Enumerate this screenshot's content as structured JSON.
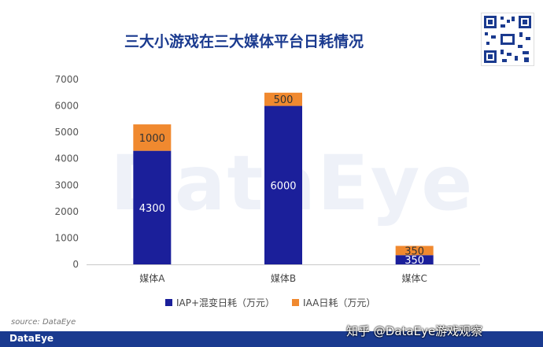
{
  "chart_data": {
    "type": "bar",
    "stacked": true,
    "title": "三大小游戏在三大媒体平台日耗情况",
    "categories": [
      "媒体A",
      "媒体B",
      "媒体C"
    ],
    "series": [
      {
        "name": "IAP+混变日耗（万元）",
        "values": [
          4300,
          6000,
          350
        ],
        "color": "#1b1f9a"
      },
      {
        "name": "IAA日耗（万元）",
        "values": [
          1000,
          500,
          350
        ],
        "color": "#f0892f"
      }
    ],
    "data_labels": [
      [
        "4300",
        "6000",
        "350"
      ],
      [
        "1000",
        "500",
        "350"
      ]
    ],
    "yticks": [
      "0",
      "1000",
      "2000",
      "3000",
      "4000",
      "5000",
      "6000",
      "7000"
    ],
    "ylim": [
      0,
      7000
    ],
    "legend_position": "bottom",
    "grid": false
  },
  "source": "source: DataEye",
  "watermark": "DataEye",
  "footer": {
    "logo": "DataEye",
    "credit": "知乎 @DataEye游戏观察"
  },
  "colors": {
    "title": "#1a3a8f",
    "footer_bg": "#1a3a8f"
  }
}
